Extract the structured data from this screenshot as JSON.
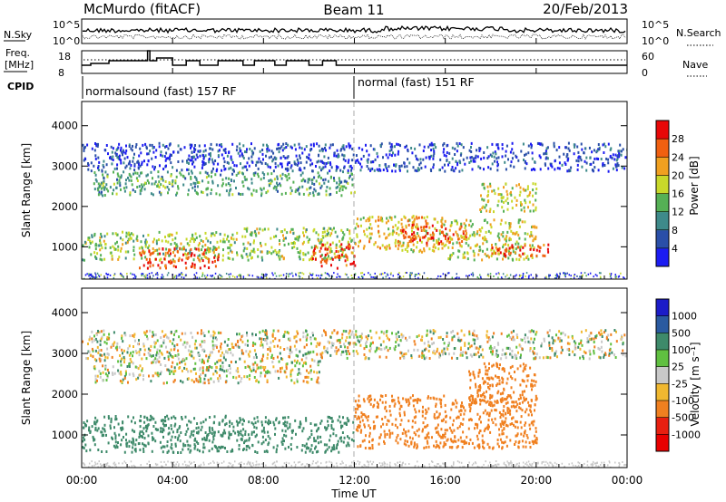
{
  "header": {
    "station": "McMurdo (fitACF)",
    "beam": "Beam 11",
    "date": "20/Feb/2013"
  },
  "noise_panel": {
    "left_label": "N.Sky",
    "right_label": "N.Search",
    "left_ticks": [
      "10^5",
      "10^0"
    ],
    "right_ticks": [
      "10^5",
      "10^0"
    ]
  },
  "freq_panel": {
    "left_label_1": "Freq.",
    "left_label_2": "[MHz]",
    "right_label": "Nave",
    "left_ticks": [
      "18",
      "8"
    ],
    "right_ticks": [
      "60",
      "0"
    ],
    "left_range": [
      8,
      18
    ],
    "right_range": [
      0,
      60
    ]
  },
  "cpid": {
    "label": "CPID",
    "mode_1": "normalsound (fast) 157 RF",
    "mode_2": "normal (fast) 151 RF",
    "switch_hour": 12
  },
  "x_axis": {
    "label": "Time UT",
    "ticks": [
      "00:00",
      "04:00",
      "08:00",
      "12:00",
      "16:00",
      "20:00",
      "00:00"
    ],
    "tick_hours": [
      0,
      4,
      8,
      12,
      16,
      20,
      24
    ]
  },
  "chart_data": [
    {
      "type": "heatmap",
      "ylabel": "Slant Range [km]",
      "yticks": [
        "1000",
        "2000",
        "3000",
        "4000"
      ],
      "ytick_values": [
        1000,
        2000,
        3000,
        4000
      ],
      "ylim": [
        200,
        4600
      ],
      "xlim": [
        0,
        24
      ],
      "colorbar": {
        "label": "Power [dB]",
        "ticks": [
          "4",
          "8",
          "12",
          "16",
          "20",
          "24",
          "28"
        ],
        "tick_values": [
          4,
          8,
          12,
          16,
          20,
          24,
          28
        ],
        "range": [
          0,
          32
        ],
        "colors": [
          "#1c1cf2",
          "#2a4fa8",
          "#3e8a8a",
          "#55b055",
          "#c8d82a",
          "#f0a020",
          "#f06010",
          "#e80808"
        ]
      },
      "features": [
        {
          "t": [
            0,
            7
          ],
          "r": [
            700,
            1400
          ],
          "level": 16
        },
        {
          "t": [
            2.5,
            6
          ],
          "r": [
            500,
            1000
          ],
          "level": 28
        },
        {
          "t": [
            7,
            12
          ],
          "r": [
            700,
            1500
          ],
          "level": 16
        },
        {
          "t": [
            10,
            12
          ],
          "r": [
            500,
            1100
          ],
          "level": 28
        },
        {
          "t": [
            12,
            16
          ],
          "r": [
            900,
            1800
          ],
          "level": 20
        },
        {
          "t": [
            14,
            17
          ],
          "r": [
            1100,
            1600
          ],
          "level": 26
        },
        {
          "t": [
            16,
            20
          ],
          "r": [
            700,
            1700
          ],
          "level": 18
        },
        {
          "t": [
            18,
            20.5
          ],
          "r": [
            800,
            1100
          ],
          "level": 28
        },
        {
          "t": [
            0.5,
            12
          ],
          "r": [
            2300,
            2900
          ],
          "level": 12
        },
        {
          "t": [
            0,
            24
          ],
          "r": [
            2900,
            3600
          ],
          "level": 5
        },
        {
          "t": [
            17.5,
            20
          ],
          "r": [
            1900,
            2600
          ],
          "level": 18
        }
      ]
    },
    {
      "type": "heatmap",
      "ylabel": "Slant Range [km]",
      "yticks": [
        "1000",
        "2000",
        "3000",
        "4000"
      ],
      "ytick_values": [
        1000,
        2000,
        3000,
        4000
      ],
      "ylim": [
        200,
        4600
      ],
      "xlim": [
        0,
        24
      ],
      "colorbar": {
        "label": "Velocity [m s⁻¹]",
        "ticks": [
          "1000",
          "500",
          "100",
          "25",
          "-25",
          "-100",
          "-500",
          "-1000"
        ],
        "tick_values": [
          1000,
          500,
          100,
          25,
          -25,
          -100,
          -500,
          -1000
        ],
        "colors": [
          "#1c1cc8",
          "#2a5aa0",
          "#3e8a6a",
          "#60c040",
          "#c8c8c8",
          "#f0b830",
          "#f08020",
          "#e82010",
          "#e80000"
        ]
      },
      "features": [
        {
          "t": [
            0,
            12
          ],
          "r": [
            600,
            1500
          ],
          "level": 200
        },
        {
          "t": [
            0.5,
            10.5
          ],
          "r": [
            2300,
            2900
          ],
          "level": 0
        },
        {
          "t": [
            12,
            20
          ],
          "r": [
            700,
            2000
          ],
          "level": -200
        },
        {
          "t": [
            17,
            20
          ],
          "r": [
            1800,
            2800
          ],
          "level": -200
        },
        {
          "t": [
            0,
            24
          ],
          "r": [
            2900,
            3600
          ],
          "level": 0
        }
      ]
    }
  ]
}
